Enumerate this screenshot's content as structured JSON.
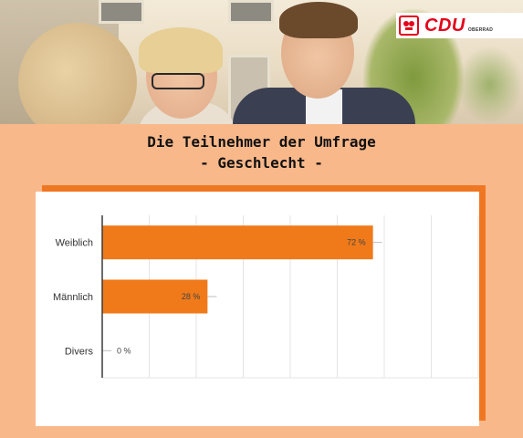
{
  "header": {
    "title_line1": "Die Teilnehmer der Umfrage",
    "title_line2": "- Geschlecht -"
  },
  "logo": {
    "brand": "CDU",
    "sub": "OBERRAD",
    "colors": {
      "brand_red": "#e3051b"
    }
  },
  "chart_data": {
    "type": "bar",
    "orientation": "horizontal",
    "categories": [
      "Weiblich",
      "Männlich",
      "Divers"
    ],
    "values": [
      72,
      28,
      0
    ],
    "value_labels": [
      "72 %",
      "28 %",
      "0 %"
    ],
    "xlim": [
      0,
      100
    ],
    "grid": true,
    "legend": "none",
    "colors": {
      "bar": "#f07a1a",
      "axis": "#3a3a3a",
      "grid": "#e4e4e4"
    }
  }
}
